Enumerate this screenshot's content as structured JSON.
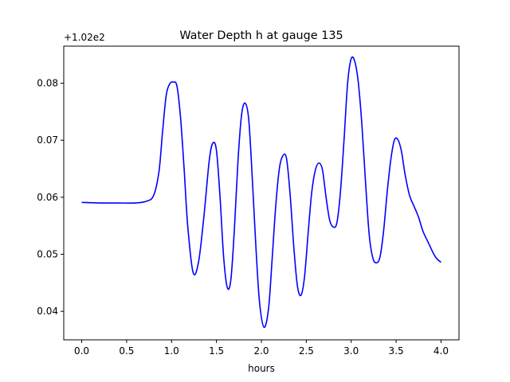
{
  "chart_data": {
    "type": "line",
    "title": "Water Depth h at gauge 135",
    "xlabel": "hours",
    "ylabel": "",
    "offset_label": "+1.02e2",
    "xlim": [
      -0.2,
      4.2
    ],
    "ylim": [
      0.035,
      0.0865
    ],
    "xticks": [
      0.0,
      0.5,
      1.0,
      1.5,
      2.0,
      2.5,
      3.0,
      3.5,
      4.0
    ],
    "xtick_labels": [
      "0.0",
      "0.5",
      "1.0",
      "1.5",
      "2.0",
      "2.5",
      "3.0",
      "3.5",
      "4.0"
    ],
    "yticks": [
      0.04,
      0.05,
      0.06,
      0.07,
      0.08
    ],
    "ytick_labels": [
      "0.04",
      "0.05",
      "0.06",
      "0.07",
      "0.08"
    ],
    "grid": false,
    "series": [
      {
        "color": "#0000ff",
        "x": [
          0.0,
          0.2,
          0.4,
          0.6,
          0.72,
          0.8,
          0.86,
          0.9,
          0.94,
          0.98,
          1.02,
          1.06,
          1.1,
          1.14,
          1.18,
          1.24,
          1.3,
          1.36,
          1.42,
          1.46,
          1.5,
          1.54,
          1.58,
          1.62,
          1.66,
          1.7,
          1.74,
          1.78,
          1.82,
          1.86,
          1.9,
          1.94,
          1.98,
          2.03,
          2.08,
          2.12,
          2.16,
          2.2,
          2.24,
          2.28,
          2.32,
          2.36,
          2.4,
          2.44,
          2.48,
          2.52,
          2.56,
          2.6,
          2.64,
          2.68,
          2.72,
          2.76,
          2.8,
          2.84,
          2.88,
          2.92,
          2.96,
          3.0,
          3.04,
          3.08,
          3.12,
          3.16,
          3.2,
          3.24,
          3.28,
          3.32,
          3.36,
          3.4,
          3.44,
          3.48,
          3.52,
          3.56,
          3.6,
          3.65,
          3.7,
          3.75,
          3.8,
          3.86,
          3.92,
          3.96,
          4.0
        ],
        "values": [
          0.0591,
          0.059,
          0.059,
          0.059,
          0.0593,
          0.0603,
          0.0645,
          0.0715,
          0.0778,
          0.0799,
          0.0802,
          0.0795,
          0.074,
          0.065,
          0.055,
          0.0468,
          0.0486,
          0.0566,
          0.0665,
          0.0695,
          0.0682,
          0.06,
          0.0495,
          0.0442,
          0.0455,
          0.0545,
          0.0665,
          0.0745,
          0.0765,
          0.0735,
          0.063,
          0.051,
          0.0415,
          0.0372,
          0.0405,
          0.0492,
          0.0585,
          0.065,
          0.0673,
          0.0668,
          0.0605,
          0.0515,
          0.0446,
          0.0428,
          0.046,
          0.0536,
          0.0608,
          0.0647,
          0.066,
          0.0648,
          0.06,
          0.056,
          0.0548,
          0.0555,
          0.0609,
          0.07,
          0.08,
          0.0843,
          0.0838,
          0.08,
          0.0725,
          0.0625,
          0.0535,
          0.0494,
          0.0485,
          0.0495,
          0.054,
          0.0608,
          0.0665,
          0.07,
          0.0701,
          0.068,
          0.064,
          0.0603,
          0.0584,
          0.0565,
          0.054,
          0.052,
          0.05,
          0.0491,
          0.0486
        ]
      }
    ]
  }
}
